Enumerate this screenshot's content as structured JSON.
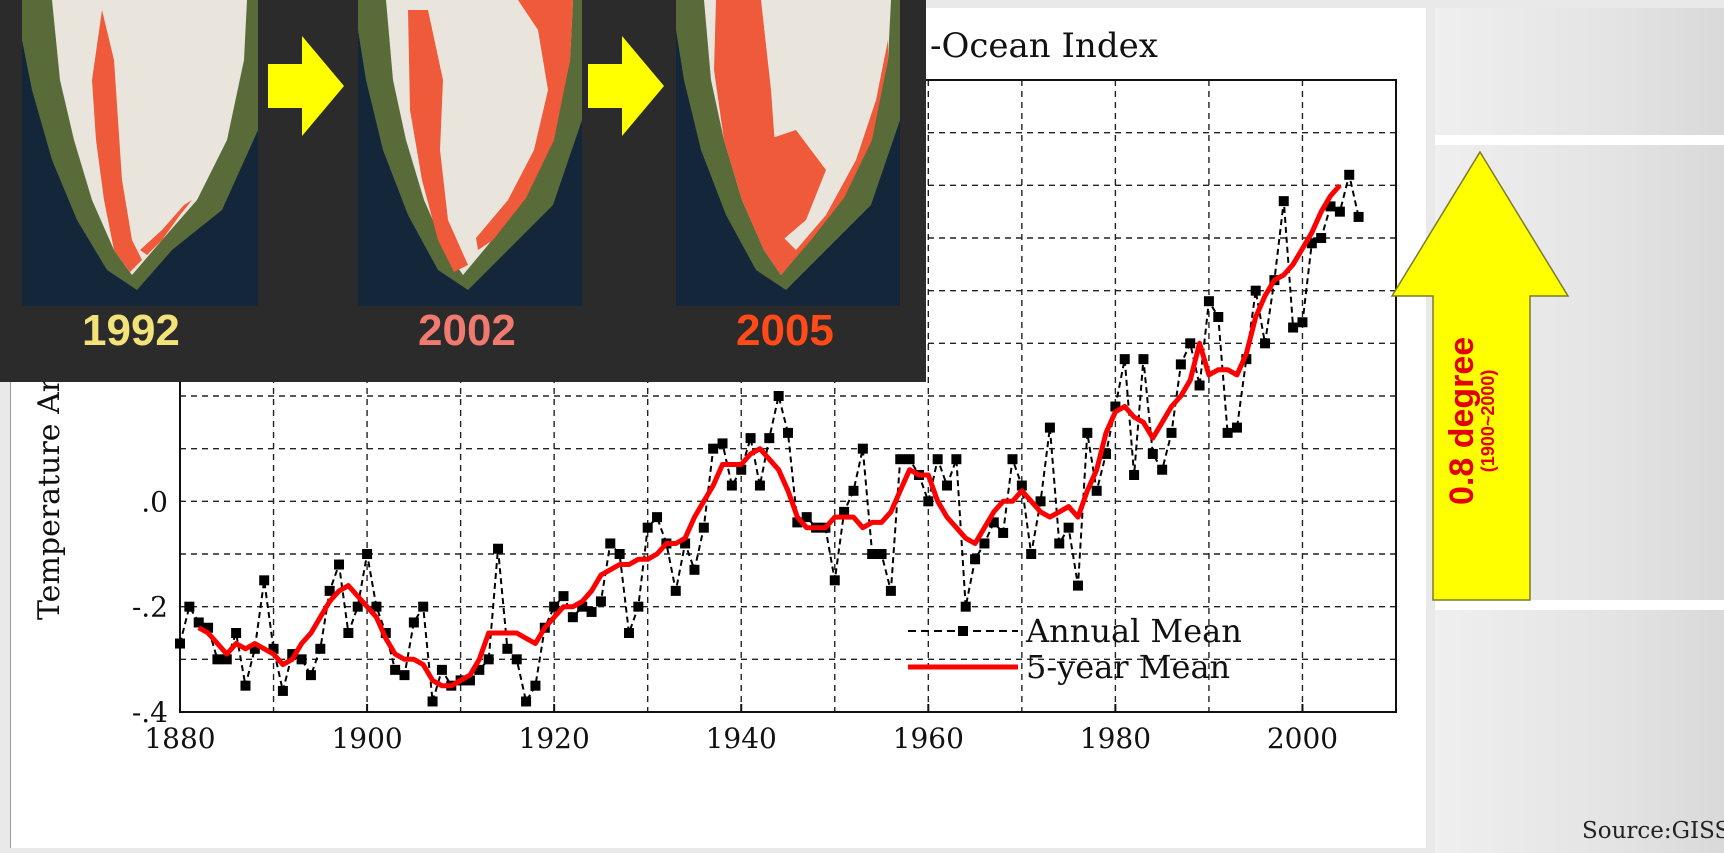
{
  "chart_data": {
    "type": "line",
    "title": "-Ocean Index",
    "ylabel": "Temperature An",
    "xlim": [
      1880,
      2010
    ],
    "ylim": [
      -0.4,
      0.8
    ],
    "x_ticks": [
      1880,
      1900,
      1920,
      1940,
      1960,
      1980,
      2000
    ],
    "y_ticks": [
      {
        "value": -0.4,
        "label": "-.4"
      },
      {
        "value": -0.2,
        "label": "-.2"
      },
      {
        "value": 0.0,
        "label": ".0"
      }
    ],
    "grid": true,
    "legend": "bottom-right",
    "series": [
      {
        "name": "Annual Mean",
        "style": "dashed-square",
        "color": "#000000",
        "x": [
          1880,
          1881,
          1882,
          1883,
          1884,
          1885,
          1886,
          1887,
          1888,
          1889,
          1890,
          1891,
          1892,
          1893,
          1894,
          1895,
          1896,
          1897,
          1898,
          1899,
          1900,
          1901,
          1902,
          1903,
          1904,
          1905,
          1906,
          1907,
          1908,
          1909,
          1910,
          1911,
          1912,
          1913,
          1914,
          1915,
          1916,
          1917,
          1918,
          1919,
          1920,
          1921,
          1922,
          1923,
          1924,
          1925,
          1926,
          1927,
          1928,
          1929,
          1930,
          1931,
          1932,
          1933,
          1934,
          1935,
          1936,
          1937,
          1938,
          1939,
          1940,
          1941,
          1942,
          1943,
          1944,
          1945,
          1946,
          1947,
          1948,
          1949,
          1950,
          1951,
          1952,
          1953,
          1954,
          1955,
          1956,
          1957,
          1958,
          1959,
          1960,
          1961,
          1962,
          1963,
          1964,
          1965,
          1966,
          1967,
          1968,
          1969,
          1970,
          1971,
          1972,
          1973,
          1974,
          1975,
          1976,
          1977,
          1978,
          1979,
          1980,
          1981,
          1982,
          1983,
          1984,
          1985,
          1986,
          1987,
          1988,
          1989,
          1990,
          1991,
          1992,
          1993,
          1994,
          1995,
          1996,
          1997,
          1998,
          1999,
          2000,
          2001,
          2002,
          2003,
          2004,
          2005,
          2006
        ],
        "y": [
          -0.27,
          -0.2,
          -0.23,
          -0.24,
          -0.3,
          -0.3,
          -0.25,
          -0.35,
          -0.28,
          -0.15,
          -0.28,
          -0.36,
          -0.29,
          -0.3,
          -0.33,
          -0.28,
          -0.17,
          -0.12,
          -0.25,
          -0.2,
          -0.1,
          -0.2,
          -0.25,
          -0.32,
          -0.33,
          -0.23,
          -0.2,
          -0.38,
          -0.32,
          -0.35,
          -0.34,
          -0.34,
          -0.32,
          -0.3,
          -0.09,
          -0.28,
          -0.3,
          -0.38,
          -0.35,
          -0.24,
          -0.2,
          -0.18,
          -0.22,
          -0.2,
          -0.21,
          -0.19,
          -0.08,
          -0.1,
          -0.25,
          -0.2,
          -0.05,
          -0.03,
          -0.08,
          -0.17,
          -0.08,
          -0.13,
          -0.05,
          0.1,
          0.11,
          0.03,
          0.06,
          0.12,
          0.03,
          0.12,
          0.2,
          0.13,
          -0.04,
          -0.03,
          -0.05,
          -0.05,
          -0.15,
          -0.02,
          0.02,
          0.1,
          -0.1,
          -0.1,
          -0.17,
          0.08,
          0.08,
          0.05,
          0.0,
          0.08,
          0.03,
          0.08,
          -0.2,
          -0.11,
          -0.08,
          -0.04,
          -0.06,
          0.08,
          0.03,
          -0.1,
          0.0,
          0.14,
          -0.08,
          -0.05,
          -0.16,
          0.13,
          0.02,
          0.09,
          0.18,
          0.27,
          0.05,
          0.27,
          0.09,
          0.06,
          0.13,
          0.26,
          0.3,
          0.22,
          0.38,
          0.35,
          0.13,
          0.14,
          0.27,
          0.4,
          0.3,
          0.42,
          0.57,
          0.33,
          0.34,
          0.49,
          0.5,
          0.56,
          0.55,
          0.62,
          0.54
        ]
      },
      {
        "name": "5-year Mean",
        "style": "solid",
        "color": "#ff0000",
        "x": [
          1882,
          1883,
          1884,
          1885,
          1886,
          1887,
          1888,
          1889,
          1890,
          1891,
          1892,
          1893,
          1894,
          1895,
          1896,
          1897,
          1898,
          1899,
          1900,
          1901,
          1902,
          1903,
          1904,
          1905,
          1906,
          1907,
          1908,
          1909,
          1910,
          1911,
          1912,
          1913,
          1914,
          1915,
          1916,
          1917,
          1918,
          1919,
          1920,
          1921,
          1922,
          1923,
          1924,
          1925,
          1926,
          1927,
          1928,
          1929,
          1930,
          1931,
          1932,
          1933,
          1934,
          1935,
          1936,
          1937,
          1938,
          1939,
          1940,
          1941,
          1942,
          1943,
          1944,
          1945,
          1946,
          1947,
          1948,
          1949,
          1950,
          1951,
          1952,
          1953,
          1954,
          1955,
          1956,
          1957,
          1958,
          1959,
          1960,
          1961,
          1962,
          1963,
          1964,
          1965,
          1966,
          1967,
          1968,
          1969,
          1970,
          1971,
          1972,
          1973,
          1974,
          1975,
          1976,
          1977,
          1978,
          1979,
          1980,
          1981,
          1982,
          1983,
          1984,
          1985,
          1986,
          1987,
          1988,
          1989,
          1990,
          1991,
          1992,
          1993,
          1994,
          1995,
          1996,
          1997,
          1998,
          1999,
          2000,
          2001,
          2002,
          2003,
          2004
        ],
        "y": [
          -0.24,
          -0.25,
          -0.27,
          -0.29,
          -0.27,
          -0.28,
          -0.27,
          -0.28,
          -0.29,
          -0.31,
          -0.3,
          -0.27,
          -0.25,
          -0.22,
          -0.19,
          -0.17,
          -0.16,
          -0.18,
          -0.2,
          -0.22,
          -0.26,
          -0.29,
          -0.3,
          -0.3,
          -0.31,
          -0.34,
          -0.35,
          -0.35,
          -0.34,
          -0.33,
          -0.3,
          -0.25,
          -0.25,
          -0.25,
          -0.25,
          -0.26,
          -0.27,
          -0.24,
          -0.22,
          -0.2,
          -0.2,
          -0.19,
          -0.17,
          -0.14,
          -0.13,
          -0.12,
          -0.12,
          -0.11,
          -0.11,
          -0.1,
          -0.08,
          -0.08,
          -0.07,
          -0.03,
          0.0,
          0.03,
          0.07,
          0.07,
          0.07,
          0.09,
          0.1,
          0.08,
          0.06,
          0.02,
          -0.03,
          -0.05,
          -0.05,
          -0.05,
          -0.03,
          -0.03,
          -0.03,
          -0.05,
          -0.04,
          -0.04,
          -0.02,
          0.02,
          0.06,
          0.05,
          0.05,
          0.0,
          -0.03,
          -0.05,
          -0.07,
          -0.08,
          -0.05,
          -0.02,
          0.0,
          0.0,
          0.02,
          0.0,
          -0.02,
          -0.03,
          -0.02,
          -0.01,
          -0.03,
          0.02,
          0.06,
          0.13,
          0.17,
          0.18,
          0.16,
          0.15,
          0.12,
          0.15,
          0.18,
          0.2,
          0.23,
          0.3,
          0.24,
          0.25,
          0.25,
          0.24,
          0.28,
          0.35,
          0.39,
          0.42,
          0.43,
          0.45,
          0.48,
          0.51,
          0.55,
          0.58,
          0.6
        ]
      }
    ]
  },
  "legend": {
    "annual": "Annual Mean",
    "five_year": "5-year Mean"
  },
  "source": "Source:GISS",
  "inset": {
    "years": [
      {
        "label": "1992",
        "color": "#f2e27a"
      },
      {
        "label": "2002",
        "color": "#f07a70"
      },
      {
        "label": "2005",
        "color": "#ff4a1a"
      }
    ],
    "arrow_color": "#ffff00"
  },
  "annotation": {
    "label": "0.8 degree",
    "sub": "(1900~2000)",
    "arrow_color": "#ffff00",
    "text_color": "#e20000"
  }
}
